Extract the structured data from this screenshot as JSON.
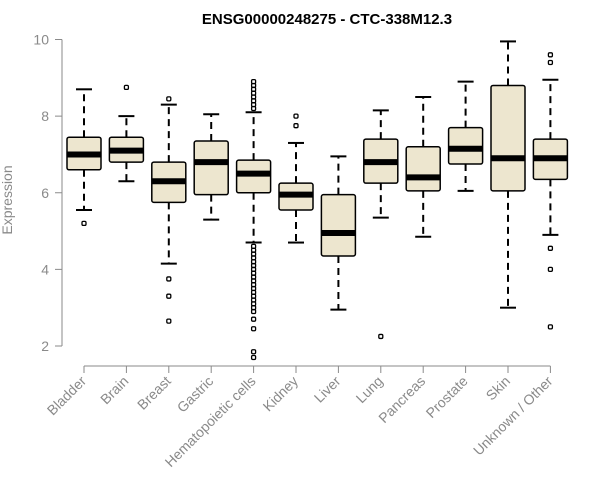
{
  "chart_data": {
    "type": "boxplot",
    "title": "ENSG00000248275 - CTC-338M12.3",
    "xlabel": "",
    "ylabel": "Expression",
    "ylim": [
      1.5,
      10.3
    ],
    "yticks": [
      2,
      4,
      6,
      8,
      10
    ],
    "grid": false,
    "legend": "none",
    "colors": {
      "box_fill": "#ede6cf",
      "box_stroke": "#000000",
      "median": "#000000",
      "axis": "#8a8a8a"
    },
    "categories": [
      "Bladder",
      "Brain",
      "Breast",
      "Gastric",
      "Hematopoietic cells",
      "Kidney",
      "Liver",
      "Lung",
      "Pancreas",
      "Prostate",
      "Skin",
      "Unknown / Other"
    ],
    "boxes": [
      {
        "category": "Bladder",
        "whisker_low": 5.55,
        "q1": 6.6,
        "median": 7.0,
        "q3": 7.45,
        "whisker_high": 8.7,
        "outliers": [
          5.2
        ]
      },
      {
        "category": "Brain",
        "whisker_low": 6.3,
        "q1": 6.8,
        "median": 7.1,
        "q3": 7.45,
        "whisker_high": 8.0,
        "outliers": [
          8.75
        ]
      },
      {
        "category": "Breast",
        "whisker_low": 4.15,
        "q1": 5.75,
        "median": 6.3,
        "q3": 6.8,
        "whisker_high": 8.3,
        "outliers": [
          8.45,
          3.75,
          3.3,
          2.65
        ]
      },
      {
        "category": "Gastric",
        "whisker_low": 5.3,
        "q1": 5.95,
        "median": 6.8,
        "q3": 7.35,
        "whisker_high": 8.05,
        "outliers": []
      },
      {
        "category": "Hematopoietic cells",
        "whisker_low": 4.7,
        "q1": 6.0,
        "median": 6.5,
        "q3": 6.85,
        "whisker_high": 8.1,
        "outliers": [
          8.2,
          8.3,
          8.4,
          8.5,
          8.6,
          8.7,
          8.8,
          8.9,
          4.6,
          4.5,
          4.4,
          4.3,
          4.2,
          4.1,
          4.0,
          3.9,
          3.8,
          3.7,
          3.6,
          3.5,
          3.4,
          3.3,
          3.2,
          3.1,
          3.0,
          2.9,
          2.7,
          2.45,
          1.85,
          1.7
        ]
      },
      {
        "category": "Kidney",
        "whisker_low": 4.7,
        "q1": 5.55,
        "median": 5.95,
        "q3": 6.25,
        "whisker_high": 7.3,
        "outliers": [
          7.75,
          8.0
        ]
      },
      {
        "category": "Liver",
        "whisker_low": 2.95,
        "q1": 4.35,
        "median": 4.95,
        "q3": 5.95,
        "whisker_high": 6.95,
        "outliers": []
      },
      {
        "category": "Lung",
        "whisker_low": 5.35,
        "q1": 6.25,
        "median": 6.8,
        "q3": 7.4,
        "whisker_high": 8.15,
        "outliers": [
          2.25
        ]
      },
      {
        "category": "Pancreas",
        "whisker_low": 4.85,
        "q1": 6.05,
        "median": 6.4,
        "q3": 7.2,
        "whisker_high": 8.5,
        "outliers": []
      },
      {
        "category": "Prostate",
        "whisker_low": 6.05,
        "q1": 6.75,
        "median": 7.15,
        "q3": 7.7,
        "whisker_high": 8.9,
        "outliers": []
      },
      {
        "category": "Skin",
        "whisker_low": 3.0,
        "q1": 6.05,
        "median": 6.9,
        "q3": 8.8,
        "whisker_high": 9.95,
        "outliers": []
      },
      {
        "category": "Unknown / Other",
        "whisker_low": 4.9,
        "q1": 6.35,
        "median": 6.9,
        "q3": 7.4,
        "whisker_high": 8.95,
        "outliers": [
          9.6,
          9.4,
          4.55,
          4.0,
          2.5
        ]
      }
    ]
  }
}
